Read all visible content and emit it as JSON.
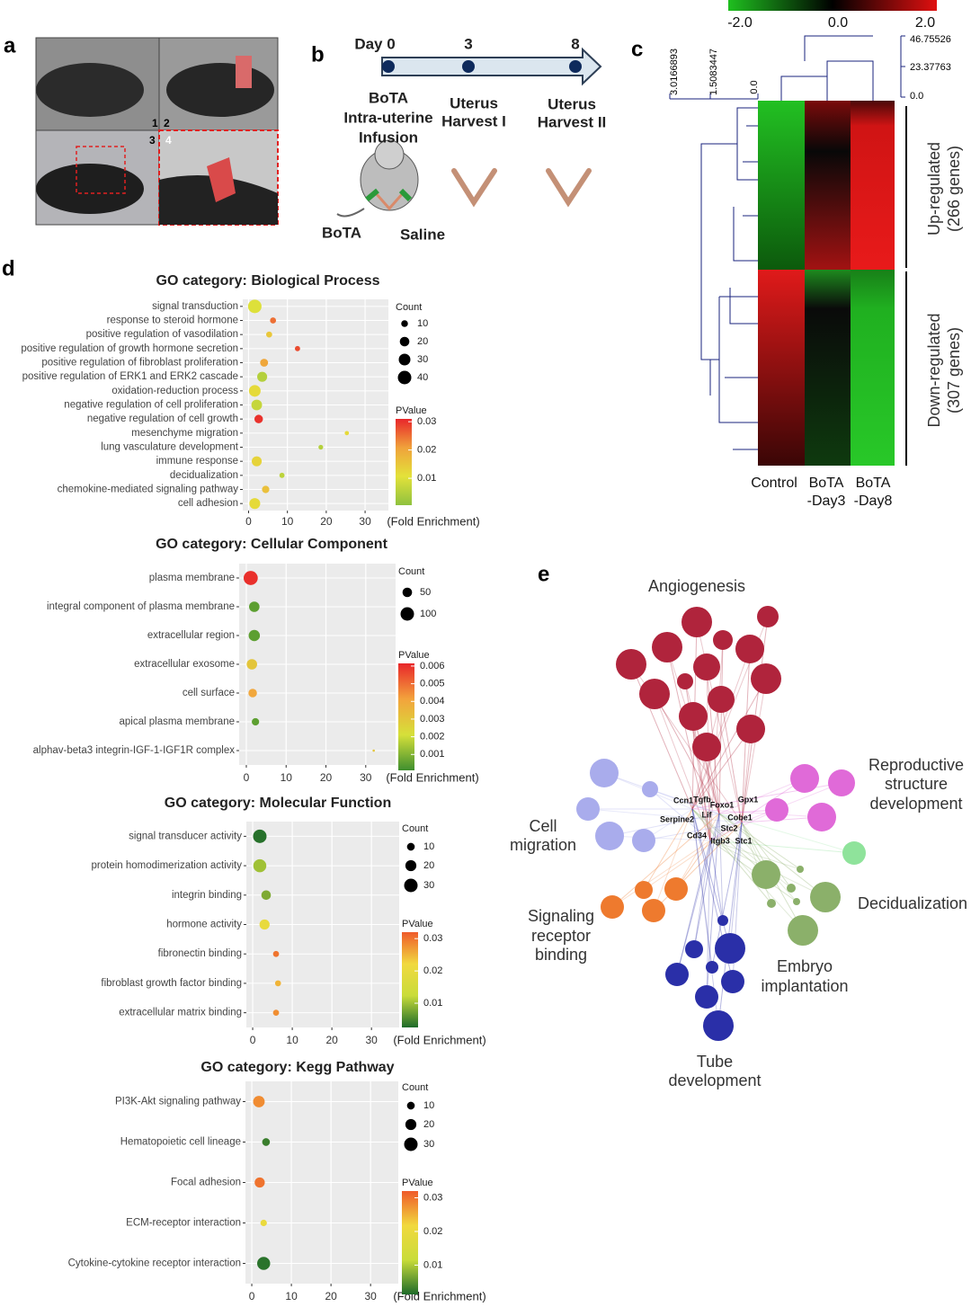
{
  "panel_labels": [
    "a",
    "b",
    "c",
    "d",
    "e"
  ],
  "panel_a": {
    "photo_numbers": [
      "1",
      "2",
      "3",
      "4"
    ]
  },
  "panel_b": {
    "days": [
      "Day 0",
      "3",
      "8"
    ],
    "events": [
      [
        "BoTA",
        "Intra-uterine",
        "Infusion"
      ],
      [
        "Uterus",
        "Harvest I"
      ],
      [
        "Uterus",
        "Harvest II"
      ]
    ],
    "injections": [
      "BoTA",
      "Saline"
    ]
  },
  "panel_c": {
    "color_scale_labels": [
      "-2.0",
      "0.0",
      "2.0"
    ],
    "col_dendrogram_labels": [
      "46.75526",
      "23.37763",
      "0.0"
    ],
    "row_dendrogram_labels": [
      "3.0166893",
      "1.5083447",
      "0.0"
    ],
    "columns": [
      [
        "Control"
      ],
      [
        "BoTA",
        "-Day3"
      ],
      [
        "BoTA",
        "-Day8"
      ]
    ],
    "row_groups": [
      [
        "Up-regulated",
        "(266 genes)"
      ],
      [
        "Down-regulated",
        "(307 genes)"
      ]
    ]
  },
  "chart_data": [
    {
      "type": "dot",
      "title": "GO category: Biological Process",
      "categories": [
        "signal transduction",
        "response to steroid hormone",
        "positive regulation of vasodilation",
        "positive regulation of growth hormone secretion",
        "positive regulation of fibroblast proliferation",
        "positive regulation of ERK1 and ERK2 cascade",
        "oxidation-reduction process",
        "negative regulation of cell proliferation",
        "negative regulation of cell growth",
        "mesenchyme migration",
        "lung vasculature development",
        "immune response",
        "decidualization",
        "chemokine-mediated signaling pathway",
        "cell adhesion"
      ],
      "values": [
        1.6,
        6.3,
        5.3,
        12.6,
        4.0,
        3.5,
        1.6,
        2.1,
        2.6,
        25.3,
        18.6,
        2.1,
        8.6,
        4.4,
        1.6
      ],
      "counts": [
        40,
        8,
        8,
        6,
        14,
        22,
        30,
        25,
        16,
        4,
        5,
        22,
        6,
        12,
        26
      ],
      "pvalues": [
        0.01,
        0.025,
        0.015,
        0.028,
        0.02,
        0.005,
        0.012,
        0.007,
        0.03,
        0.012,
        0.005,
        0.013,
        0.006,
        0.016,
        0.012
      ],
      "xlim": [
        -1.5,
        36
      ],
      "xticks": [
        0,
        10,
        20,
        30
      ],
      "x_label": "(Fold Enrichment)",
      "size_legend": {
        "title": "Count",
        "ticks": [
          10,
          20,
          30,
          40
        ]
      },
      "color_legend": {
        "title": "PValue",
        "lim": [
          0.0005,
          0.031
        ],
        "ticks": [
          0.01,
          0.02,
          0.03
        ],
        "colors": [
          "#8fc23f",
          "#e3e23a",
          "#f0a23b",
          "#e8262a"
        ]
      }
    },
    {
      "type": "dot",
      "title": "GO category: Cellular Component",
      "categories": [
        "plasma membrane",
        "integral component of plasma membrane",
        "extracellular region",
        "extracellular exosome",
        "cell surface",
        "apical plasma membrane",
        "alphav-beta3 integrin-IGF-1-IGF1R complex"
      ],
      "values": [
        1.1,
        2.0,
        2.0,
        1.4,
        1.6,
        2.3,
        32
      ],
      "counts": [
        110,
        60,
        70,
        60,
        40,
        30,
        3
      ],
      "pvalues": [
        0.006,
        0.0005,
        0.0005,
        0.003,
        0.004,
        0.0005,
        0.003
      ],
      "xlim": [
        -1.8,
        37.5
      ],
      "xticks": [
        0,
        10,
        20,
        30
      ],
      "x_label": "(Fold Enrichment)",
      "size_legend": {
        "title": "Count",
        "ticks": [
          50,
          100
        ]
      },
      "color_legend": {
        "title": "PValue",
        "lim": [
          0.0001,
          0.00615
        ],
        "ticks": [
          0.001,
          0.002,
          0.003,
          0.004,
          0.005,
          0.006
        ],
        "colors": [
          "#3f8f2f",
          "#d6e03a",
          "#f3a33c",
          "#e8262a"
        ]
      }
    },
    {
      "type": "dot",
      "title": "GO category: Molecular Function",
      "categories": [
        "signal transducer activity",
        "protein homodimerization activity",
        "integrin binding",
        "hormone activity",
        "fibronectin binding",
        "fibroblast growth factor binding",
        "extracellular matrix binding"
      ],
      "values": [
        1.8,
        1.8,
        3.4,
        3.0,
        5.9,
        6.4,
        5.9
      ],
      "counts": [
        30,
        28,
        15,
        17,
        6,
        6,
        6
      ],
      "pvalues": [
        0.003,
        0.01,
        0.008,
        0.02,
        0.03,
        0.025,
        0.028
      ],
      "xlim": [
        -1.6,
        37
      ],
      "xticks": [
        0,
        10,
        20,
        30
      ],
      "x_label": "(Fold Enrichment)",
      "size_legend": {
        "title": "Count",
        "ticks": [
          10,
          20,
          30
        ]
      },
      "color_legend": {
        "title": "PValue",
        "lim": [
          0.0025,
          0.032
        ],
        "ticks": [
          0.01,
          0.02,
          0.03
        ],
        "colors": [
          "#1e6b2a",
          "#c9dc3a",
          "#f1d93e",
          "#ef5a2a"
        ]
      }
    },
    {
      "type": "dot",
      "title": "GO category: Kegg Pathway",
      "categories": [
        "PI3K-Akt signaling pathway",
        "Hematopoietic cell lineage",
        "Focal adhesion",
        "ECM-receptor interaction",
        "Cytokine-cytokine receptor interaction"
      ],
      "values": [
        1.8,
        3.6,
        2.0,
        3.0,
        3.0
      ],
      "counts": [
        22,
        10,
        17,
        7,
        28
      ],
      "pvalues": [
        0.028,
        0.003,
        0.03,
        0.02,
        0.002
      ],
      "xlim": [
        -1.6,
        37
      ],
      "xticks": [
        0,
        10,
        20,
        30
      ],
      "x_label": "(Fold Enrichment)",
      "size_legend": {
        "title": "Count",
        "ticks": [
          10,
          20,
          30
        ]
      },
      "color_legend": {
        "title": "PValue",
        "lim": [
          0.0013,
          0.032
        ],
        "ticks": [
          0.01,
          0.02,
          0.03
        ],
        "colors": [
          "#1e6b2a",
          "#c9dc3a",
          "#f1d93e",
          "#ef5a2a"
        ]
      }
    }
  ],
  "panel_e": {
    "clusters": [
      [
        "Angiogenesis"
      ],
      [
        "Reproductive",
        "structure",
        "development"
      ],
      [
        "Cell",
        "migration"
      ],
      [
        "Signaling",
        "receptor",
        "binding"
      ],
      [
        "Decidualization"
      ],
      [
        "Embryo",
        "implantation"
      ],
      [
        "Tube",
        "development"
      ]
    ],
    "genes": [
      "Ccn1",
      "Tgfb",
      "Foxo1",
      "Gpx1",
      "Serpine2",
      "Lif",
      "Cobe1",
      "Stc2",
      "Cd34",
      "Itgb3",
      "Stc1"
    ]
  }
}
